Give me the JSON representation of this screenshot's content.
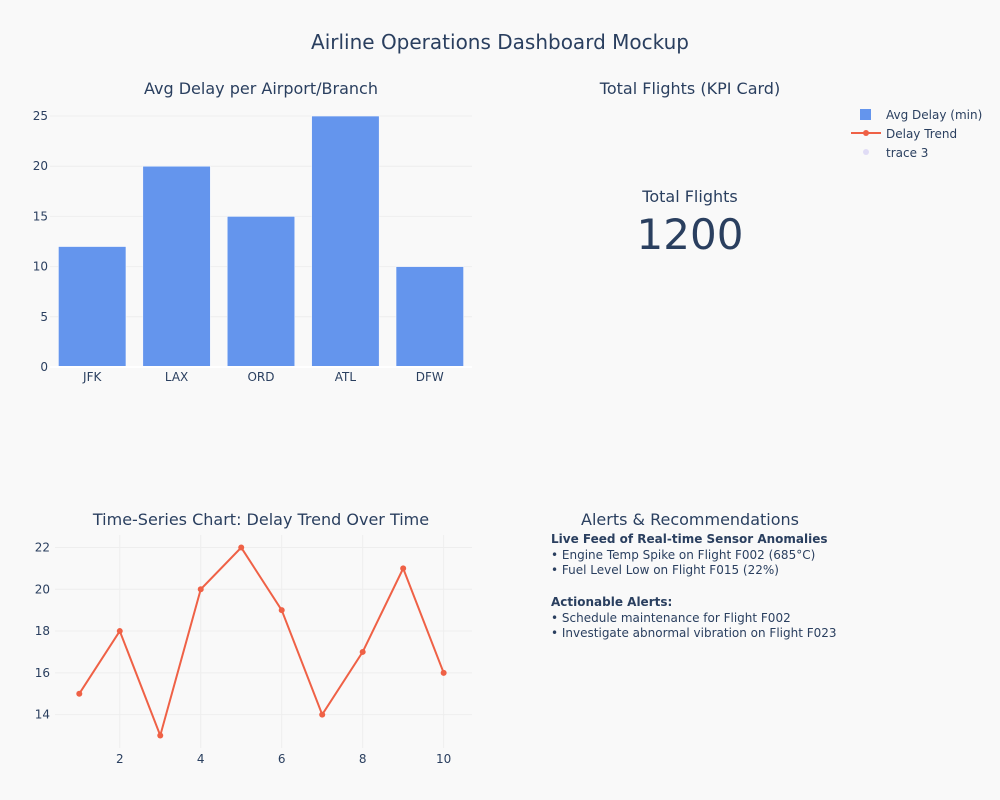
{
  "page": {
    "title": "Airline Operations Dashboard Mockup"
  },
  "legend": [
    {
      "name": "Avg Delay (min)",
      "symbol": "bar",
      "color": "#6495ed"
    },
    {
      "name": "Delay Trend",
      "symbol": "line",
      "color": "#ef6146"
    },
    {
      "name": "trace 3",
      "symbol": "dot",
      "color": "#e0dcf5"
    }
  ],
  "kpi": {
    "subplot_title": "Total Flights (KPI Card)",
    "label": "Total Flights",
    "value": "1200"
  },
  "alerts": {
    "subplot_title": "Alerts & Recommendations",
    "sections": [
      {
        "heading": "Live Feed of Real-time Sensor Anomalies",
        "lines": [
          "• Engine Temp Spike on Flight F002 (685°C)",
          "• Fuel Level Low on Flight F015 (22%)"
        ]
      },
      {
        "heading": "Actionable Alerts:",
        "lines": [
          "• Schedule maintenance for Flight F002",
          "• Investigate abnormal vibration on Flight F023"
        ]
      }
    ]
  },
  "chart_data": [
    {
      "type": "bar",
      "title": "Avg Delay per Airport/Branch",
      "series_name": "Avg Delay (min)",
      "categories": [
        "JFK",
        "LAX",
        "ORD",
        "ATL",
        "DFW"
      ],
      "values": [
        12,
        20,
        15,
        25,
        10
      ],
      "ylim": [
        0,
        26.3
      ],
      "yticks": [
        0,
        5,
        10,
        15,
        20,
        25
      ],
      "color": "#6495ed",
      "grid": true
    },
    {
      "type": "line",
      "title": "Time-Series Chart: Delay Trend Over Time",
      "series_name": "Delay Trend",
      "x": [
        1,
        2,
        3,
        4,
        5,
        6,
        7,
        8,
        9,
        10
      ],
      "y": [
        15,
        18,
        13,
        20,
        22,
        19,
        14,
        17,
        21,
        16
      ],
      "xlim": [
        0.4,
        10.7
      ],
      "ylim": [
        12.4,
        22.6
      ],
      "xticks": [
        2,
        4,
        6,
        8,
        10
      ],
      "yticks": [
        14,
        16,
        18,
        20,
        22
      ],
      "color": "#ef6146",
      "grid": true
    }
  ]
}
